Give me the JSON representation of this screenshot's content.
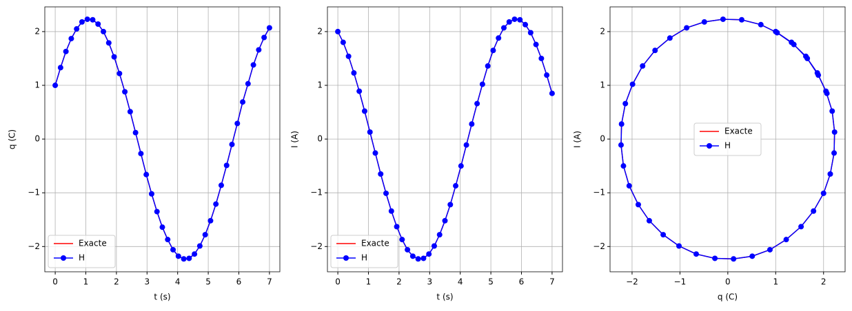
{
  "chart_data": [
    {
      "type": "line",
      "xlabel": "t (s)",
      "ylabel": "q (C)",
      "legend": "lower left",
      "grid": true,
      "xlim": [
        -0.34,
        7.34
      ],
      "ylim": [
        -2.47,
        2.46
      ],
      "xticks": [
        0,
        1,
        2,
        3,
        4,
        5,
        6,
        7
      ],
      "yticks": [
        {
          "value": -2,
          "label": "−2"
        },
        {
          "value": -1,
          "label": "−1"
        },
        0,
        1,
        2
      ],
      "x": [
        0,
        0.175,
        0.35,
        0.525,
        0.7,
        0.875,
        1.05,
        1.225,
        1.4,
        1.575,
        1.75,
        1.925,
        2.1,
        2.275,
        2.45,
        2.625,
        2.8,
        2.975,
        3.15,
        3.325,
        3.5,
        3.675,
        3.85,
        4.025,
        4.2,
        4.375,
        4.55,
        4.725,
        4.9,
        5.075,
        5.25,
        5.425,
        5.6,
        5.775,
        5.95,
        6.125,
        6.3,
        6.475,
        6.65,
        6.825,
        7
      ],
      "series": [
        {
          "name": "Exacte",
          "color": "#ff0000",
          "values": [
            1,
            1.33,
            1.63,
            1.87,
            2.05,
            2.18,
            2.23,
            2.22,
            2.14,
            2,
            1.79,
            1.53,
            1.22,
            0.88,
            0.51,
            0.12,
            -0.27,
            -0.66,
            -1.02,
            -1.35,
            -1.64,
            -1.87,
            -2.06,
            -2.18,
            -2.23,
            -2.22,
            -2.14,
            -1.99,
            -1.78,
            -1.52,
            -1.21,
            -0.86,
            -0.49,
            -0.1,
            0.29,
            0.69,
            1.03,
            1.38,
            1.66,
            1.89,
            2.07
          ]
        },
        {
          "name": "H",
          "color": "#0000ff",
          "marker": "o",
          "values": [
            1,
            1.33,
            1.63,
            1.87,
            2.05,
            2.18,
            2.23,
            2.22,
            2.14,
            2,
            1.79,
            1.53,
            1.22,
            0.88,
            0.51,
            0.12,
            -0.27,
            -0.66,
            -1.02,
            -1.35,
            -1.64,
            -1.87,
            -2.06,
            -2.18,
            -2.23,
            -2.22,
            -2.14,
            -1.99,
            -1.78,
            -1.52,
            -1.21,
            -0.86,
            -0.49,
            -0.1,
            0.29,
            0.69,
            1.03,
            1.38,
            1.66,
            1.89,
            2.07
          ]
        }
      ]
    },
    {
      "type": "line",
      "xlabel": "t (s)",
      "ylabel": "I (A)",
      "legend": "lower left",
      "grid": true,
      "xlim": [
        -0.34,
        7.34
      ],
      "ylim": [
        -2.47,
        2.46
      ],
      "xticks": [
        0,
        1,
        2,
        3,
        4,
        5,
        6,
        7
      ],
      "yticks": [
        {
          "value": -2,
          "label": "−2"
        },
        {
          "value": -1,
          "label": "−1"
        },
        0,
        1,
        2
      ],
      "x": [
        0,
        0.175,
        0.35,
        0.525,
        0.7,
        0.875,
        1.05,
        1.225,
        1.4,
        1.575,
        1.75,
        1.925,
        2.1,
        2.275,
        2.45,
        2.625,
        2.8,
        2.975,
        3.15,
        3.325,
        3.5,
        3.675,
        3.85,
        4.025,
        4.2,
        4.375,
        4.55,
        4.725,
        4.9,
        5.075,
        5.25,
        5.425,
        5.6,
        5.775,
        5.95,
        6.125,
        6.3,
        6.475,
        6.65,
        6.825,
        7
      ],
      "series": [
        {
          "name": "Exacte",
          "color": "#ff0000",
          "values": [
            2,
            1.8,
            1.54,
            1.23,
            0.89,
            0.52,
            0.13,
            -0.26,
            -0.65,
            -1.01,
            -1.34,
            -1.63,
            -1.87,
            -2.06,
            -2.18,
            -2.23,
            -2.22,
            -2.14,
            -1.99,
            -1.78,
            -1.52,
            -1.22,
            -0.87,
            -0.5,
            -0.11,
            0.28,
            0.66,
            1.02,
            1.36,
            1.65,
            1.88,
            2.07,
            2.18,
            2.23,
            2.22,
            2.13,
            1.98,
            1.76,
            1.5,
            1.19,
            0.85
          ]
        },
        {
          "name": "H",
          "color": "#0000ff",
          "marker": "o",
          "values": [
            2,
            1.8,
            1.54,
            1.23,
            0.89,
            0.52,
            0.13,
            -0.26,
            -0.65,
            -1.01,
            -1.34,
            -1.63,
            -1.87,
            -2.06,
            -2.18,
            -2.23,
            -2.22,
            -2.14,
            -1.99,
            -1.78,
            -1.52,
            -1.22,
            -0.87,
            -0.5,
            -0.11,
            0.28,
            0.66,
            1.02,
            1.36,
            1.65,
            1.88,
            2.07,
            2.18,
            2.23,
            2.22,
            2.13,
            1.98,
            1.76,
            1.5,
            1.19,
            0.85
          ]
        }
      ]
    },
    {
      "type": "line",
      "xlabel": "q (C)",
      "ylabel": "I (A)",
      "legend": "center",
      "grid": true,
      "xlim": [
        -2.46,
        2.45
      ],
      "ylim": [
        -2.47,
        2.46
      ],
      "xticks": [
        {
          "value": -2,
          "label": "−2"
        },
        {
          "value": -1,
          "label": "−1"
        },
        0,
        1,
        2
      ],
      "yticks": [
        {
          "value": -2,
          "label": "−2"
        },
        {
          "value": -1,
          "label": "−1"
        },
        0,
        1,
        2
      ],
      "x": [
        1,
        1.33,
        1.63,
        1.87,
        2.05,
        2.18,
        2.23,
        2.22,
        2.14,
        2,
        1.79,
        1.53,
        1.22,
        0.88,
        0.51,
        0.12,
        -0.27,
        -0.66,
        -1.02,
        -1.35,
        -1.64,
        -1.87,
        -2.06,
        -2.18,
        -2.23,
        -2.22,
        -2.14,
        -1.99,
        -1.78,
        -1.52,
        -1.21,
        -0.86,
        -0.49,
        -0.1,
        0.29,
        0.69,
        1.03,
        1.38,
        1.66,
        1.89,
        2.07
      ],
      "series": [
        {
          "name": "Exacte",
          "color": "#ff0000",
          "values": [
            2,
            1.8,
            1.54,
            1.23,
            0.89,
            0.52,
            0.13,
            -0.26,
            -0.65,
            -1.01,
            -1.34,
            -1.63,
            -1.87,
            -2.06,
            -2.18,
            -2.23,
            -2.22,
            -2.14,
            -1.99,
            -1.78,
            -1.52,
            -1.22,
            -0.87,
            -0.5,
            -0.11,
            0.28,
            0.66,
            1.02,
            1.36,
            1.65,
            1.88,
            2.07,
            2.18,
            2.23,
            2.22,
            2.13,
            1.98,
            1.76,
            1.5,
            1.19,
            0.85
          ]
        },
        {
          "name": "H",
          "color": "#0000ff",
          "marker": "o",
          "values": [
            2,
            1.8,
            1.54,
            1.23,
            0.89,
            0.52,
            0.13,
            -0.26,
            -0.65,
            -1.01,
            -1.34,
            -1.63,
            -1.87,
            -2.06,
            -2.18,
            -2.23,
            -2.22,
            -2.14,
            -1.99,
            -1.78,
            -1.52,
            -1.22,
            -0.87,
            -0.5,
            -0.11,
            0.28,
            0.66,
            1.02,
            1.36,
            1.65,
            1.88,
            2.07,
            2.18,
            2.23,
            2.22,
            2.13,
            1.98,
            1.76,
            1.5,
            1.19,
            0.85
          ]
        }
      ]
    }
  ]
}
